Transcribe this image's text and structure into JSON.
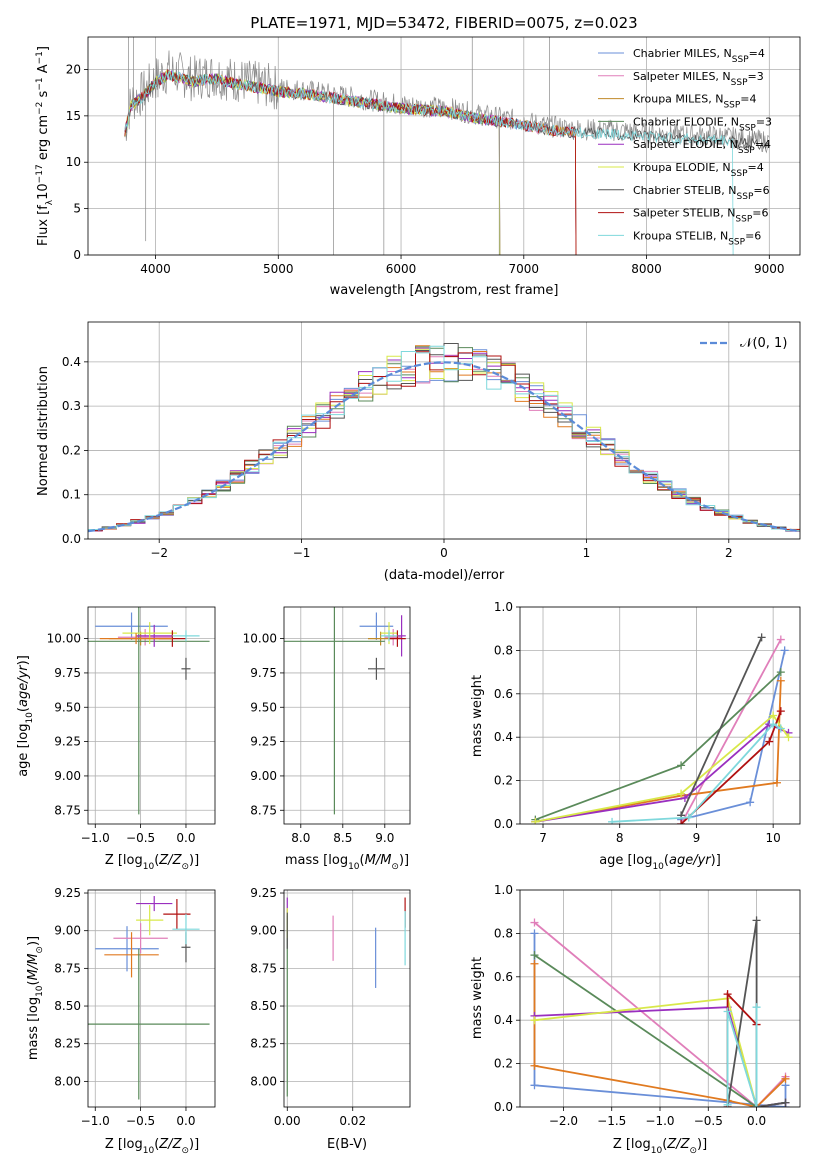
{
  "figure": {
    "title": "PLATE=1971, MJD=53472, FIBERID=0075, z=0.023"
  },
  "colors": {
    "Chabrier MILES": "#6a8fd8",
    "Salpeter MILES": "#e07fba",
    "Kroupa MILES": "#c08a2a",
    "Chabrier ELODIE": "#5a8a5a",
    "Salpeter ELODIE": "#9a2fbf",
    "Kroupa ELODIE": "#d8e84a",
    "Chabrier STELIB": "#555555",
    "Salpeter STELIB": "#b01010",
    "Kroupa STELIB": "#7fd8dc",
    "orange": "#e07a20",
    "normal": "#5b8bd8"
  },
  "legend": [
    {
      "name": "Chabrier MILES",
      "n": "4"
    },
    {
      "name": "Salpeter MILES",
      "n": "3"
    },
    {
      "name": "Kroupa MILES",
      "n": "4"
    },
    {
      "name": "Chabrier ELODIE",
      "n": "3"
    },
    {
      "name": "Salpeter ELODIE",
      "n": "4"
    },
    {
      "name": "Kroupa ELODIE",
      "n": "4"
    },
    {
      "name": "Chabrier STELIB",
      "n": "6"
    },
    {
      "name": "Salpeter STELIB",
      "n": "6"
    },
    {
      "name": "Kroupa STELIB",
      "n": "6"
    }
  ],
  "chart_data": [
    {
      "id": "spectrum",
      "type": "line",
      "xlabel": "wavelength [Angstrom, rest frame]",
      "ylabel": "Flux [f_λ10^-17 erg cm^-2 s^-1 A^-1]",
      "xlim": [
        3450,
        9250
      ],
      "ylim": [
        0,
        23.5
      ],
      "xticks": [
        4000,
        5000,
        6000,
        7000,
        8000,
        9000
      ],
      "yticks": [
        0,
        5,
        10,
        15,
        20
      ],
      "envelope": {
        "x": [
          3750,
          3800,
          3900,
          4000,
          4100,
          4200,
          4300,
          4400,
          4500,
          4600,
          4700,
          4800,
          4900,
          5000,
          5200,
          5400,
          5600,
          5800,
          6000,
          6200,
          6400,
          6600,
          6800,
          7000,
          7200,
          7400,
          7600,
          7800,
          8000,
          8200,
          8400,
          8600,
          8800,
          9000
        ],
        "y": [
          13.5,
          16.5,
          17.5,
          19.0,
          19.8,
          19.5,
          19.0,
          19.3,
          19.4,
          19.0,
          18.8,
          18.5,
          18.3,
          18.0,
          17.8,
          17.4,
          17.0,
          16.6,
          16.2,
          16.0,
          15.8,
          15.2,
          14.8,
          14.4,
          13.9,
          13.6,
          13.5,
          13.4,
          13.2,
          13.0,
          12.9,
          12.8,
          12.5,
          12.2
        ]
      },
      "model_end_x": {
        "Chabrier MILES": 7420,
        "Salpeter MILES": 7420,
        "Kroupa MILES": 7420,
        "Chabrier ELODIE": 6800,
        "Salpeter ELODIE": 6800,
        "Kroupa ELODIE": 6800,
        "Chabrier STELIB": 9000,
        "Salpeter STELIB": 7420,
        "Kroupa STELIB": 8700
      }
    },
    {
      "id": "residuals",
      "type": "line",
      "xlabel": "(data-model)/error",
      "ylabel": "Normed distribution",
      "xlim": [
        -2.5,
        2.5
      ],
      "ylim": [
        0,
        0.49
      ],
      "xticks": [
        -2,
        -1,
        0,
        1,
        2
      ],
      "yticks": [
        0.0,
        0.1,
        0.2,
        0.3,
        0.4
      ],
      "legend_label": "𝒩(0, 1)"
    },
    {
      "id": "age-vs-Z",
      "type": "scatter",
      "xlabel": "Z [log10(Z/Z⊙)]",
      "ylabel": "age  [log10(age/yr)]",
      "xlim": [
        -1.08,
        0.32
      ],
      "ylim": [
        8.65,
        10.23
      ],
      "xticks": [
        -1.0,
        -0.5,
        0.0
      ],
      "yticks": [
        8.75,
        9.0,
        9.25,
        9.5,
        9.75,
        10.0
      ],
      "points": [
        {
          "s": "Chabrier MILES",
          "x": -0.6,
          "y": 10.09,
          "xe": 0.4,
          "ye": 0.1
        },
        {
          "s": "Salpeter MILES",
          "x": -0.45,
          "y": 10.01,
          "xe": 0.3,
          "ye": 0.06
        },
        {
          "s": "Kroupa MILES",
          "x": -0.5,
          "y": 10.0,
          "xe": 0.35,
          "ye": 0.05
        },
        {
          "s": "Chabrier ELODIE",
          "x": -0.52,
          "y": 9.98,
          "xe": 0.78,
          "ye": 1.26
        },
        {
          "s": "Salpeter ELODIE",
          "x": -0.35,
          "y": 10.02,
          "xe": 0.2,
          "ye": 0.08
        },
        {
          "s": "Kroupa ELODIE",
          "x": -0.4,
          "y": 10.04,
          "xe": 0.3,
          "ye": 0.08
        },
        {
          "s": "Chabrier STELIB",
          "x": 0.0,
          "y": 9.78,
          "xe": 0.05,
          "ye": 0.08
        },
        {
          "s": "Salpeter STELIB",
          "x": -0.15,
          "y": 10.0,
          "xe": 0.15,
          "ye": 0.06
        },
        {
          "s": "Kroupa STELIB",
          "x": 0.0,
          "y": 10.02,
          "xe": 0.15,
          "ye": 0.04
        },
        {
          "s": "orange",
          "x": -0.55,
          "y": 10.0,
          "xe": 0.4,
          "ye": 0.04
        }
      ]
    },
    {
      "id": "age-vs-mass",
      "type": "scatter",
      "xlabel": "mass [log10(M/M⊙)]",
      "ylabel": "",
      "xlim": [
        7.8,
        9.3
      ],
      "ylim": [
        8.65,
        10.23
      ],
      "xticks": [
        8.0,
        8.5,
        9.0
      ],
      "yticks": [
        8.75,
        9.0,
        9.25,
        9.5,
        9.75,
        10.0
      ],
      "points": [
        {
          "s": "Chabrier MILES",
          "x": 8.9,
          "y": 10.09,
          "xe": 0.2,
          "ye": 0.1
        },
        {
          "s": "Salpeter MILES",
          "x": 9.1,
          "y": 10.01,
          "xe": 0.1,
          "ye": 0.06
        },
        {
          "s": "Kroupa MILES",
          "x": 8.95,
          "y": 10.0,
          "xe": 0.15,
          "ye": 0.05
        },
        {
          "s": "Chabrier ELODIE",
          "x": 8.4,
          "y": 9.98,
          "xe": 0.6,
          "ye": 1.26
        },
        {
          "s": "Salpeter ELODIE",
          "x": 9.2,
          "y": 10.02,
          "xe": 0.05,
          "ye": 0.15
        },
        {
          "s": "Kroupa ELODIE",
          "x": 9.05,
          "y": 10.04,
          "xe": 0.1,
          "ye": 0.08
        },
        {
          "s": "Chabrier STELIB",
          "x": 8.9,
          "y": 9.78,
          "xe": 0.1,
          "ye": 0.08
        },
        {
          "s": "Salpeter STELIB",
          "x": 9.15,
          "y": 10.0,
          "xe": 0.1,
          "ye": 0.06
        },
        {
          "s": "Kroupa STELIB",
          "x": 9.05,
          "y": 10.02,
          "xe": 0.1,
          "ye": 0.04
        }
      ]
    },
    {
      "id": "weight-vs-age",
      "type": "line",
      "xlabel": "age  [log10(age/yr)]",
      "ylabel": "mass weight",
      "xlim": [
        6.7,
        10.35
      ],
      "ylim": [
        0,
        1.0
      ],
      "xticks": [
        7,
        8,
        9,
        10
      ],
      "yticks": [
        0.0,
        0.2,
        0.4,
        0.6,
        0.8,
        1.0
      ],
      "series": [
        {
          "s": "Chabrier MILES",
          "x": [
            8.8,
            9.7,
            10.15
          ],
          "y": [
            0.02,
            0.1,
            0.8
          ]
        },
        {
          "s": "Salpeter MILES",
          "x": [
            8.8,
            10.1
          ],
          "y": [
            0.0,
            0.85
          ]
        },
        {
          "s": "orange",
          "x": [
            6.9,
            8.8,
            10.05,
            10.1
          ],
          "y": [
            0.01,
            0.13,
            0.19,
            0.66
          ]
        },
        {
          "s": "Chabrier ELODIE",
          "x": [
            6.9,
            8.8,
            10.1
          ],
          "y": [
            0.02,
            0.27,
            0.7
          ]
        },
        {
          "s": "Salpeter ELODIE",
          "x": [
            6.9,
            8.85,
            9.95,
            10.2
          ],
          "y": [
            0.01,
            0.12,
            0.46,
            0.42
          ]
        },
        {
          "s": "Kroupa ELODIE",
          "x": [
            6.9,
            8.8,
            10.0,
            10.2
          ],
          "y": [
            0.01,
            0.14,
            0.5,
            0.4
          ]
        },
        {
          "s": "Chabrier STELIB",
          "x": [
            8.8,
            9.85
          ],
          "y": [
            0.04,
            0.86
          ]
        },
        {
          "s": "Salpeter STELIB",
          "x": [
            8.8,
            9.95,
            10.1
          ],
          "y": [
            0.0,
            0.38,
            0.52
          ]
        },
        {
          "s": "Kroupa STELIB",
          "x": [
            7.9,
            8.9,
            10.0,
            10.1
          ],
          "y": [
            0.01,
            0.03,
            0.46,
            0.44
          ]
        }
      ]
    },
    {
      "id": "mass-vs-Z",
      "type": "scatter",
      "xlabel": "Z [log10(Z/Z⊙)]",
      "ylabel": "mass [log10(M/M⊙)]",
      "xlim": [
        -1.08,
        0.32
      ],
      "ylim": [
        7.83,
        9.27
      ],
      "xticks": [
        -1.0,
        -0.5,
        0.0
      ],
      "yticks": [
        8.0,
        8.25,
        8.5,
        8.75,
        9.0,
        9.25
      ],
      "points": [
        {
          "s": "Chabrier MILES",
          "x": -0.65,
          "y": 8.88,
          "xe": 0.35,
          "ye": 0.15
        },
        {
          "s": "Salpeter MILES",
          "x": -0.5,
          "y": 8.95,
          "xe": 0.3,
          "ye": 0.1
        },
        {
          "s": "orange",
          "x": -0.6,
          "y": 8.84,
          "xe": 0.3,
          "ye": 0.15
        },
        {
          "s": "Chabrier ELODIE",
          "x": -0.52,
          "y": 8.38,
          "xe": 0.78,
          "ye": 0.5
        },
        {
          "s": "Salpeter ELODIE",
          "x": -0.35,
          "y": 9.18,
          "xe": 0.2,
          "ye": 0.05
        },
        {
          "s": "Kroupa ELODIE",
          "x": -0.4,
          "y": 9.07,
          "xe": 0.15,
          "ye": 0.1
        },
        {
          "s": "Chabrier STELIB",
          "x": 0.0,
          "y": 8.89,
          "xe": 0.05,
          "ye": 0.1
        },
        {
          "s": "Salpeter STELIB",
          "x": -0.1,
          "y": 9.11,
          "xe": 0.15,
          "ye": 0.1
        },
        {
          "s": "Kroupa STELIB",
          "x": 0.0,
          "y": 9.01,
          "xe": 0.15,
          "ye": 0.1
        }
      ]
    },
    {
      "id": "mass-vs-EBV",
      "type": "scatter",
      "xlabel": "E(B-V)",
      "ylabel": "",
      "xlim": [
        -0.001,
        0.0375
      ],
      "ylim": [
        7.83,
        9.27
      ],
      "xticks": [
        0.0,
        0.02
      ],
      "yticks": [
        8.0,
        8.25,
        8.5,
        8.75,
        9.0,
        9.25
      ],
      "points": [
        {
          "s": "Chabrier MILES",
          "x": 0.027,
          "y": 8.82,
          "xe": 0,
          "ye": 0.2
        },
        {
          "s": "Salpeter MILES",
          "x": 0.014,
          "y": 8.95,
          "xe": 0,
          "ye": 0.15
        },
        {
          "s": "Chabrier ELODIE",
          "x": 0.0,
          "y": 8.5,
          "xe": 0,
          "ye": 0.6
        },
        {
          "s": "Salpeter ELODIE",
          "x": 0.0,
          "y": 9.17,
          "xe": 0,
          "ye": 0.05
        },
        {
          "s": "Kroupa ELODIE",
          "x": 0.0,
          "y": 9.05,
          "xe": 0,
          "ye": 0.1
        },
        {
          "s": "Salpeter STELIB",
          "x": 0.036,
          "y": 9.12,
          "xe": 0,
          "ye": 0.1
        },
        {
          "s": "Kroupa STELIB",
          "x": 0.036,
          "y": 8.95,
          "xe": 0,
          "ye": 0.18
        },
        {
          "s": "Chabrier STELIB",
          "x": 0.0,
          "y": 9.0,
          "xe": 0,
          "ye": 0.12
        }
      ]
    },
    {
      "id": "weight-vs-Z",
      "type": "line",
      "xlabel": "Z [log10(Z/Z⊙)]",
      "ylabel": "mass weight",
      "xlim": [
        -2.45,
        0.45
      ],
      "ylim": [
        0,
        1.0
      ],
      "xticks": [
        -2.0,
        -1.5,
        -1.0,
        -0.5,
        0.0
      ],
      "yticks": [
        0.0,
        0.2,
        0.4,
        0.6,
        0.8,
        1.0
      ],
      "series": [
        {
          "s": "Chabrier MILES",
          "x": [
            -2.3,
            -2.3,
            0.0,
            0.3,
            0.3
          ],
          "y": [
            0.8,
            0.1,
            0.01,
            0.0,
            0.1
          ]
        },
        {
          "s": "Salpeter MILES",
          "x": [
            -2.3,
            0.0,
            0.3
          ],
          "y": [
            0.85,
            0.0,
            0.14
          ]
        },
        {
          "s": "orange",
          "x": [
            -2.3,
            -2.3,
            -0.3,
            0.0,
            0.3
          ],
          "y": [
            0.66,
            0.19,
            0.03,
            0.0,
            0.13
          ]
        },
        {
          "s": "Chabrier ELODIE",
          "x": [
            -2.3,
            0.0,
            0.3
          ],
          "y": [
            0.7,
            0.0,
            0.02
          ]
        },
        {
          "s": "Salpeter ELODIE",
          "x": [
            -2.3,
            -0.3,
            0.0,
            0.3
          ],
          "y": [
            0.42,
            0.46,
            0.0,
            0.02
          ]
        },
        {
          "s": "Kroupa ELODIE",
          "x": [
            -2.3,
            -0.3,
            0.0
          ],
          "y": [
            0.4,
            0.5,
            0.0
          ]
        },
        {
          "s": "Chabrier STELIB",
          "x": [
            -0.3,
            0.0,
            0.0,
            0.3
          ],
          "y": [
            0.0,
            0.86,
            0.0,
            0.02
          ]
        },
        {
          "s": "Salpeter STELIB",
          "x": [
            -0.3,
            -0.3,
            0.0
          ],
          "y": [
            0.0,
            0.52,
            0.38
          ]
        },
        {
          "s": "Kroupa STELIB",
          "x": [
            -0.3,
            -0.3,
            0.0,
            0.0
          ],
          "y": [
            0.01,
            0.44,
            0.0,
            0.46
          ]
        }
      ]
    }
  ]
}
